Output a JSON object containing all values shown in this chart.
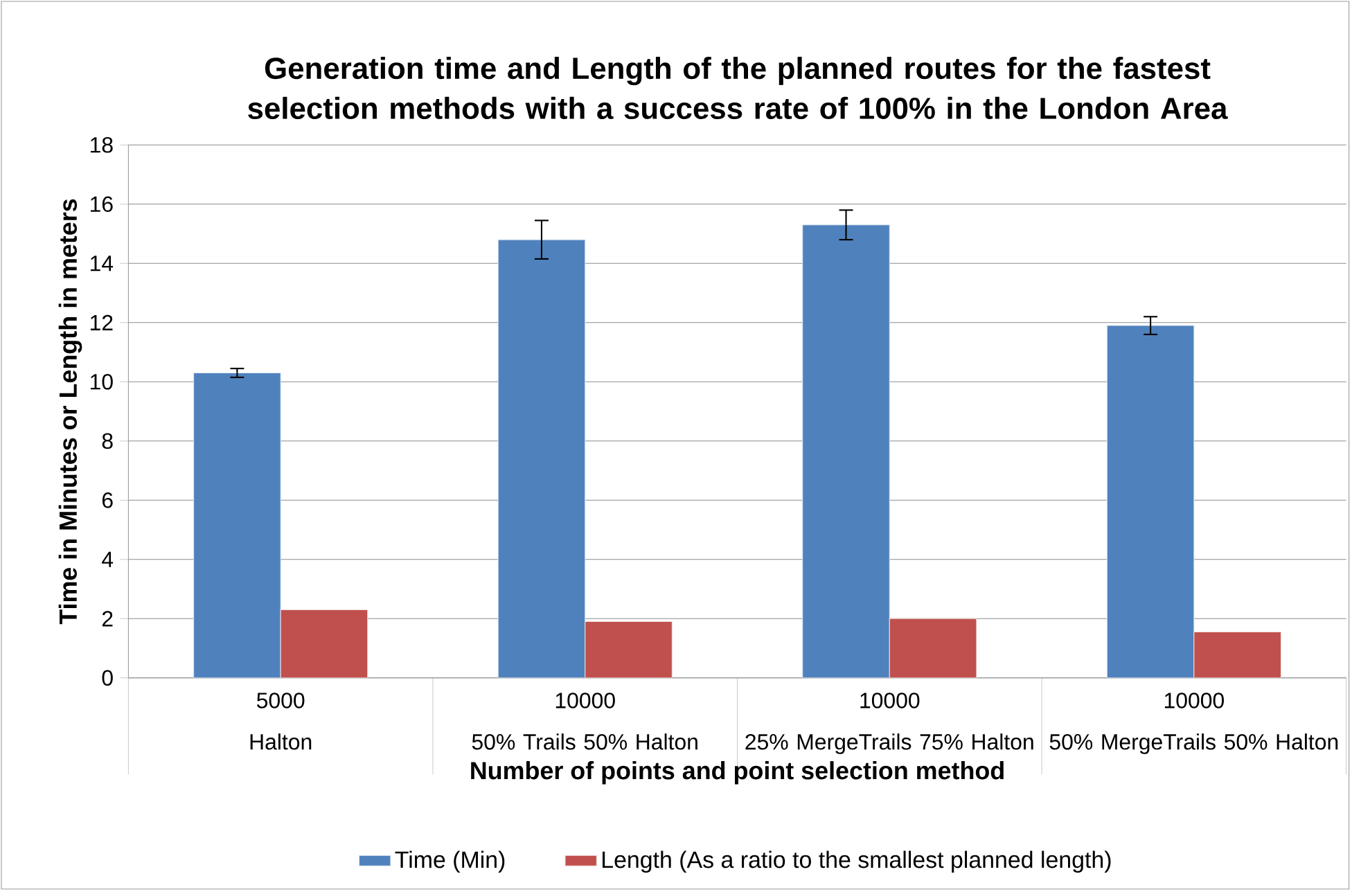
{
  "chart_data": {
    "type": "bar",
    "title": "Generation time and Length of the planned routes for the fastest selection methods with a success rate of 100% in the London Area",
    "xlabel": "Number of points and point selection method",
    "ylabel": "Time in Minutes or Length in meters",
    "categories": [
      "5000\nHalton",
      "10000\n50% Trails 50% Halton",
      "10000\n25% MergeTrails 75% Halton",
      "10000\n50% MergeTrails 50% Halton"
    ],
    "series": [
      {
        "name": "Time (Min)",
        "color": "#4f81bd",
        "values": [
          10.3,
          14.8,
          15.3,
          11.9
        ],
        "errors": [
          0.15,
          0.65,
          0.5,
          0.3
        ]
      },
      {
        "name": "Length (As a ratio to the smallest planned length)",
        "color": "#c0504d",
        "values": [
          2.3,
          1.9,
          2.0,
          1.55
        ]
      }
    ],
    "ylim": [
      0,
      18
    ],
    "yticks": [
      0,
      2,
      4,
      6,
      8,
      10,
      12,
      14,
      16,
      18
    ],
    "grid": "y",
    "legend": "bottom"
  }
}
